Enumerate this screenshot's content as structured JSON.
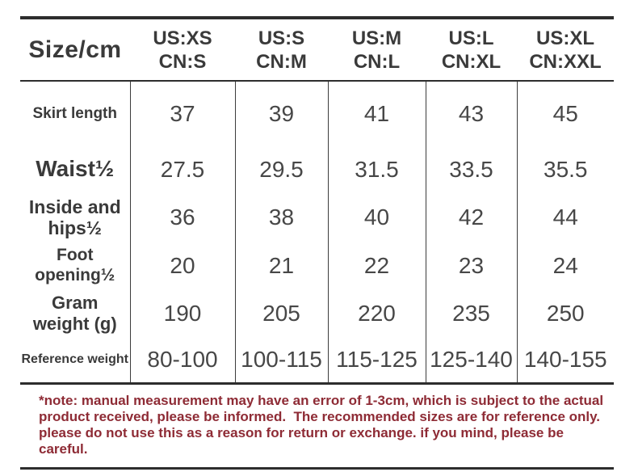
{
  "chart_data": {
    "type": "table",
    "title": "Size/cm",
    "unit": "cm",
    "columns": [
      {
        "us": "US:XS",
        "cn": "CN:S"
      },
      {
        "us": "US:S",
        "cn": "CN:M"
      },
      {
        "us": "US:M",
        "cn": "CN:L"
      },
      {
        "us": "US:L",
        "cn": "CN:XL"
      },
      {
        "us": "US:XL",
        "cn": "CN:XXL"
      }
    ],
    "rows": [
      {
        "label": "Skirt length",
        "values": [
          "37",
          "39",
          "41",
          "43",
          "45"
        ]
      },
      {
        "label": "Waist½",
        "values": [
          "27.5",
          "29.5",
          "31.5",
          "33.5",
          "35.5"
        ]
      },
      {
        "label": "Inside and hips½",
        "values": [
          "36",
          "38",
          "40",
          "42",
          "44"
        ]
      },
      {
        "label": "Foot opening½",
        "values": [
          "20",
          "21",
          "22",
          "23",
          "24"
        ]
      },
      {
        "label": "Gram weight (g)",
        "values": [
          "190",
          "205",
          "220",
          "235",
          "250"
        ]
      },
      {
        "label": "Reference weight",
        "values": [
          "80-100",
          "100-115",
          "115-125",
          "125-140",
          "140-155"
        ]
      }
    ]
  },
  "note": {
    "text": "*note: manual measurement may have an error of 1-3cm, which is subject to the actual product received, please be informed.  The recommended sizes are for reference only. please do not use this as a reason for return or exchange. if you mind, please be careful."
  },
  "colors": {
    "background": "#ffffff",
    "text": "#3a3a3a",
    "line": "#2d2d2d",
    "note_red": "#8e2b35"
  }
}
